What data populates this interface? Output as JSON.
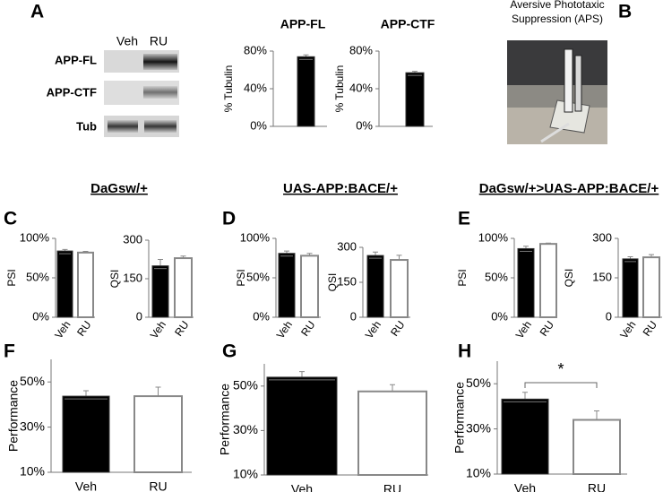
{
  "panels": [
    "A",
    "B",
    "C",
    "D",
    "E",
    "F",
    "G",
    "H"
  ],
  "blot": {
    "columns": [
      "Veh",
      "RU"
    ],
    "rows": [
      "APP-FL",
      "APP-CTF",
      "Tub"
    ]
  },
  "photo_title": [
    "Aversive Phototaxic",
    "Suppression (APS)"
  ],
  "groups": [
    "DaGsw/+",
    "UAS-APP:BACE/+",
    "DaGsw/+>UAS-APP:BACE/+"
  ],
  "chart_data": [
    {
      "type": "bar",
      "title": "APP-FL",
      "y_label": "% Tubulin",
      "categories": [
        null
      ],
      "values": [
        74
      ],
      "errors": [
        2
      ],
      "colors": [
        "#000000"
      ],
      "ylim": [
        0,
        80
      ],
      "yticks": [
        {
          "value": 0,
          "label": "0%"
        },
        {
          "value": 40,
          "label": "40%"
        },
        {
          "value": 80,
          "label": "80%"
        }
      ]
    },
    {
      "type": "bar",
      "title": "APP-CTF",
      "y_label": "% Tubulin",
      "categories": [
        null
      ],
      "values": [
        57
      ],
      "errors": [
        1.5
      ],
      "colors": [
        "#000000"
      ],
      "ylim": [
        0,
        80
      ],
      "yticks": [
        {
          "value": 0,
          "label": "0%"
        },
        {
          "value": 40,
          "label": "40%"
        },
        {
          "value": 80,
          "label": "80%"
        }
      ]
    },
    {
      "type": "bar",
      "y_label": "PSI",
      "categories": [
        "Veh",
        "RU"
      ],
      "values": [
        84,
        82
      ],
      "errors": [
        2,
        1.5
      ],
      "colors": [
        "#000000",
        "#ffffff"
      ],
      "ylim": [
        0,
        100
      ],
      "yticks": [
        {
          "value": 0,
          "label": "0%"
        },
        {
          "value": 50,
          "label": "50%"
        },
        {
          "value": 100,
          "label": "100%"
        }
      ]
    },
    {
      "type": "bar",
      "y_label": "QSI",
      "categories": [
        "Veh",
        "RU"
      ],
      "values": [
        200,
        230
      ],
      "errors": [
        25,
        8
      ],
      "colors": [
        "#000000",
        "#ffffff"
      ],
      "ylim": [
        0,
        300
      ],
      "yticks": [
        0,
        150,
        300
      ]
    },
    {
      "type": "bar",
      "y_label": "PSI",
      "categories": [
        "Veh",
        "RU"
      ],
      "values": [
        81,
        78
      ],
      "errors": [
        3,
        3
      ],
      "colors": [
        "#000000",
        "#ffffff"
      ],
      "ylim": [
        0,
        100
      ],
      "yticks": [
        {
          "value": 0,
          "label": "0%"
        },
        {
          "value": 50,
          "label": "50%"
        },
        {
          "value": 100,
          "label": "100%"
        }
      ]
    },
    {
      "type": "bar",
      "y_label": "QSI",
      "categories": [
        "Veh",
        "RU"
      ],
      "values": [
        265,
        246
      ],
      "errors": [
        15,
        20
      ],
      "colors": [
        "#000000",
        "#ffffff"
      ],
      "ylim": [
        0,
        300
      ],
      "yticks": [
        0,
        150,
        300
      ]
    },
    {
      "type": "bar",
      "y_label": "PSI",
      "categories": [
        "Veh",
        "RU"
      ],
      "values": [
        87,
        93
      ],
      "errors": [
        3,
        1
      ],
      "colors": [
        "#000000",
        "#ffffff"
      ],
      "ylim": [
        0,
        100
      ],
      "yticks": [
        {
          "value": 0,
          "label": "0%"
        },
        {
          "value": 50,
          "label": "50%"
        },
        {
          "value": 100,
          "label": "100%"
        }
      ]
    },
    {
      "type": "bar",
      "y_label": "QSI",
      "categories": [
        "Veh",
        "RU"
      ],
      "values": [
        222,
        228
      ],
      "errors": [
        8,
        10
      ],
      "colors": [
        "#000000",
        "#ffffff"
      ],
      "ylim": [
        0,
        300
      ],
      "yticks": [
        0,
        150,
        300
      ]
    },
    {
      "type": "bar",
      "y_label": "Performance",
      "categories": [
        "Veh",
        "RU"
      ],
      "values": [
        43.7,
        43.7
      ],
      "errors": [
        2.4,
        4
      ],
      "colors": [
        "#000000",
        "#ffffff"
      ],
      "ylim": [
        10,
        60
      ],
      "yticks": [
        {
          "value": 10,
          "label": "10%"
        },
        {
          "value": 30,
          "label": "30%"
        },
        {
          "value": 50,
          "label": "50%"
        }
      ]
    },
    {
      "type": "bar",
      "y_label": "Performance",
      "categories": [
        "Veh",
        "RU"
      ],
      "values": [
        54,
        47.6
      ],
      "errors": [
        2.5,
        3
      ],
      "colors": [
        "#000000",
        "#ffffff"
      ],
      "ylim": [
        10,
        60
      ],
      "yticks": [
        {
          "value": 10,
          "label": "10%"
        },
        {
          "value": 30,
          "label": "30%"
        },
        {
          "value": 50,
          "label": "50%"
        }
      ]
    },
    {
      "type": "bar",
      "y_label": "Performance",
      "categories": [
        "Veh",
        "RU"
      ],
      "values": [
        43.2,
        34
      ],
      "errors": [
        3,
        4
      ],
      "colors": [
        "#000000",
        "#ffffff"
      ],
      "ylim": [
        10,
        60
      ],
      "yticks": [
        {
          "value": 10,
          "label": "10%"
        },
        {
          "value": 30,
          "label": "30%"
        },
        {
          "value": 50,
          "label": "50%"
        }
      ],
      "annotation": "*"
    }
  ]
}
